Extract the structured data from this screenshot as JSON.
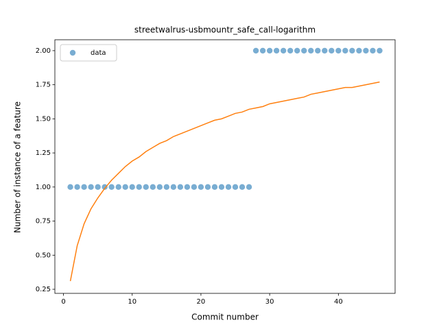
{
  "chart_data": {
    "type": "scatter",
    "title": "streetwalrus-usbmountr_safe_call-logarithm",
    "x_label": "Commit number",
    "y_label": "Number of instance of a feature",
    "x": [
      1,
      2,
      3,
      4,
      5,
      6,
      7,
      8,
      9,
      10,
      11,
      12,
      13,
      14,
      15,
      16,
      17,
      18,
      19,
      20,
      21,
      22,
      23,
      24,
      25,
      26,
      27,
      28,
      29,
      30,
      31,
      32,
      33,
      34,
      35,
      36,
      37,
      38,
      39,
      40,
      41,
      42,
      43,
      44,
      45,
      46
    ],
    "series": [
      {
        "name": "data",
        "type": "scatter",
        "color": "#1f77b4",
        "opacity": 0.6,
        "values": [
          1,
          1,
          1,
          1,
          1,
          1,
          1,
          1,
          1,
          1,
          1,
          1,
          1,
          1,
          1,
          1,
          1,
          1,
          1,
          1,
          1,
          1,
          1,
          1,
          1,
          1,
          1,
          2,
          2,
          2,
          2,
          2,
          2,
          2,
          2,
          2,
          2,
          2,
          2,
          2,
          2,
          2,
          2,
          2,
          2,
          2
        ]
      },
      {
        "type": "line",
        "color": "#ff7f0e",
        "values": [
          0.31,
          0.57,
          0.73,
          0.84,
          0.92,
          0.99,
          1.05,
          1.1,
          1.15,
          1.19,
          1.22,
          1.26,
          1.29,
          1.32,
          1.34,
          1.37,
          1.39,
          1.41,
          1.43,
          1.45,
          1.47,
          1.49,
          1.5,
          1.52,
          1.54,
          1.55,
          1.57,
          1.58,
          1.59,
          1.61,
          1.62,
          1.63,
          1.64,
          1.65,
          1.66,
          1.68,
          1.69,
          1.7,
          1.71,
          1.72,
          1.73,
          1.73,
          1.74,
          1.75,
          1.76,
          1.77
        ]
      }
    ],
    "xlim": [
      -1.25,
      48.25
    ],
    "ylim": [
      0.22,
      2.08
    ],
    "xticks": [
      0,
      10,
      20,
      30,
      40
    ],
    "yticks": [
      0.25,
      {
        "value": 0.5,
        "label": "0.50"
      },
      0.75,
      {
        "value": 1,
        "label": "1.00"
      },
      1.25,
      {
        "value": 1.5,
        "label": "1.50"
      },
      1.75,
      {
        "value": 2,
        "label": "2.00"
      }
    ],
    "grid": false,
    "legend": "upper left"
  }
}
